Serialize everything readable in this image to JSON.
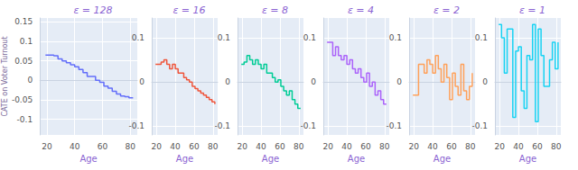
{
  "chart_data": [
    {
      "type": "line",
      "line_style": "step",
      "grid": true,
      "title": "ε = 128",
      "x_label": "Age",
      "y_label": "CATE on Voter Turnout",
      "color": "#636efa",
      "xlim": [
        15,
        85
      ],
      "xticks": [
        20,
        40,
        60,
        80
      ],
      "ylim": [
        -0.14,
        0.16
      ],
      "yticks": [
        -0.1,
        -0.05,
        0,
        0.05,
        0.1,
        0.15
      ],
      "x": [
        19,
        22,
        25,
        28,
        31,
        34,
        37,
        40,
        43,
        46,
        49,
        52,
        55,
        58,
        61,
        64,
        67,
        70,
        73,
        76,
        79,
        82
      ],
      "values": [
        0.065,
        0.065,
        0.063,
        0.055,
        0.05,
        0.045,
        0.04,
        0.035,
        0.028,
        0.02,
        0.01,
        0.01,
        0.0,
        -0.005,
        -0.015,
        -0.02,
        -0.028,
        -0.035,
        -0.04,
        -0.042,
        -0.045,
        -0.045
      ]
    },
    {
      "type": "line",
      "line_style": "step",
      "grid": true,
      "title": "ε = 16",
      "x_label": "Age",
      "color": "#ef553b",
      "xlim": [
        15,
        85
      ],
      "xticks": [
        20,
        40,
        60,
        80
      ],
      "ylim": [
        -0.12,
        0.145
      ],
      "yticks": [
        -0.1,
        0,
        0.1
      ],
      "x": [
        19,
        22,
        25,
        28,
        31,
        34,
        37,
        40,
        43,
        46,
        49,
        52,
        55,
        58,
        61,
        64,
        67,
        70,
        73,
        76,
        79,
        82
      ],
      "values": [
        0.04,
        0.04,
        0.045,
        0.05,
        0.04,
        0.03,
        0.04,
        0.03,
        0.02,
        0.02,
        0.01,
        0.005,
        0.0,
        -0.01,
        -0.015,
        -0.02,
        -0.025,
        -0.03,
        -0.035,
        -0.04,
        -0.045,
        -0.05
      ]
    },
    {
      "type": "line",
      "line_style": "step",
      "grid": true,
      "title": "ε = 8",
      "x_label": "Age",
      "color": "#00cc96",
      "xlim": [
        15,
        85
      ],
      "xticks": [
        20,
        40,
        60,
        80
      ],
      "ylim": [
        -0.12,
        0.145
      ],
      "yticks": [
        -0.1,
        0,
        0.1
      ],
      "x": [
        19,
        22,
        25,
        28,
        31,
        34,
        37,
        40,
        43,
        46,
        49,
        52,
        55,
        58,
        61,
        64,
        67,
        70,
        73,
        76,
        79,
        82
      ],
      "values": [
        0.04,
        0.045,
        0.06,
        0.05,
        0.04,
        0.05,
        0.04,
        0.03,
        0.04,
        0.02,
        0.02,
        0.01,
        0.0,
        0.005,
        -0.01,
        -0.02,
        -0.03,
        -0.02,
        -0.04,
        -0.05,
        -0.06,
        -0.06
      ]
    },
    {
      "type": "line",
      "line_style": "step",
      "grid": true,
      "title": "ε = 4",
      "x_label": "Age",
      "color": "#ab63fa",
      "xlim": [
        15,
        85
      ],
      "xticks": [
        20,
        40,
        60,
        80
      ],
      "ylim": [
        -0.12,
        0.145
      ],
      "yticks": [
        -0.1,
        0,
        0.1
      ],
      "x": [
        19,
        22,
        25,
        28,
        31,
        34,
        37,
        40,
        43,
        46,
        49,
        52,
        55,
        58,
        61,
        64,
        67,
        70,
        73,
        76,
        79,
        82
      ],
      "values": [
        0.09,
        0.09,
        0.06,
        0.08,
        0.06,
        0.05,
        0.06,
        0.04,
        0.05,
        0.03,
        0.02,
        0.03,
        0.01,
        0.0,
        0.02,
        -0.01,
        0.0,
        -0.03,
        -0.02,
        -0.04,
        -0.05,
        -0.05
      ]
    },
    {
      "type": "line",
      "line_style": "step",
      "grid": true,
      "title": "ε = 2",
      "x_label": "Age",
      "color": "#ffa15a",
      "xlim": [
        15,
        85
      ],
      "xticks": [
        20,
        40,
        60,
        80
      ],
      "ylim": [
        -0.12,
        0.145
      ],
      "yticks": [
        -0.1,
        0,
        0.1
      ],
      "x": [
        19,
        22,
        25,
        28,
        31,
        34,
        37,
        40,
        43,
        46,
        49,
        52,
        55,
        58,
        61,
        64,
        67,
        70,
        73,
        76,
        79,
        82
      ],
      "values": [
        -0.03,
        -0.03,
        0.04,
        0.04,
        0.02,
        0.05,
        0.04,
        0.02,
        0.06,
        0.03,
        0.0,
        0.04,
        0.01,
        -0.04,
        0.02,
        -0.01,
        -0.03,
        0.04,
        -0.02,
        -0.04,
        -0.01,
        0.02
      ]
    },
    {
      "type": "line",
      "line_style": "step",
      "grid": true,
      "title": "ε = 1",
      "x_label": "Age",
      "color": "#19d3f3",
      "xlim": [
        15,
        85
      ],
      "xticks": [
        20,
        40,
        60,
        80
      ],
      "ylim": [
        -0.12,
        0.145
      ],
      "yticks": [
        -0.1,
        0,
        0.1
      ],
      "x": [
        19,
        22,
        25,
        28,
        31,
        34,
        37,
        40,
        43,
        46,
        49,
        52,
        55,
        58,
        61,
        64,
        67,
        70,
        73,
        76,
        79,
        82
      ],
      "values": [
        0.13,
        0.1,
        0.02,
        0.12,
        0.12,
        -0.08,
        0.07,
        0.08,
        -0.02,
        -0.06,
        0.06,
        0.05,
        0.13,
        -0.09,
        0.12,
        0.06,
        -0.01,
        -0.01,
        0.05,
        0.09,
        0.03,
        0.09
      ]
    }
  ]
}
